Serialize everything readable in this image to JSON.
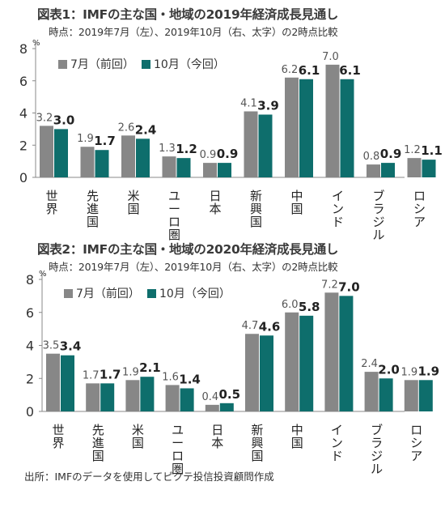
{
  "colors": {
    "prev": "#878787",
    "curr": "#0e6e6c",
    "axis": "#888888"
  },
  "source": "出所：IMFのデータを使用してピクテ投信投資顧問作成",
  "chart_data": [
    {
      "type": "bar",
      "title": "図表1：IMFの主な国・地域の2019年経済成長見通し",
      "subtitle": "時点：2019年7月（左）、2019年10月（右、太字）の2時点比較",
      "unit": "%",
      "categories": [
        "世界",
        "先進国",
        "米国",
        "ユーロ圏",
        "日本",
        "新興国",
        "中国",
        "インド",
        "ブラジル",
        "ロシア"
      ],
      "series": [
        {
          "name": "7月（前回）",
          "values": [
            3.2,
            1.9,
            2.6,
            1.3,
            0.9,
            4.1,
            6.2,
            7.0,
            0.8,
            1.2
          ]
        },
        {
          "name": "10月（今回）",
          "values": [
            3.0,
            1.7,
            2.4,
            1.2,
            0.9,
            3.9,
            6.1,
            6.1,
            0.9,
            1.1
          ]
        }
      ],
      "labels": [
        [
          "3.2",
          "1.9",
          "2.6",
          "1.3",
          "0.9",
          "4.1",
          "6.2",
          "7.0",
          "0.8",
          "1.2"
        ],
        [
          "3.0",
          "1.7",
          "2.4",
          "1.2",
          "0.9",
          "3.9",
          "6.1",
          "6.1",
          "0.9",
          "1.1"
        ]
      ],
      "yticks": [
        "0",
        "2",
        "4",
        "6",
        "8"
      ],
      "ylim": [
        0,
        8
      ],
      "legend": "top-left"
    },
    {
      "type": "bar",
      "title": "図表2：IMFの主な国・地域の2020年経済成長見通し",
      "subtitle": "時点：2019年7月（左）、2019年10月（右、太字）の2時点比較",
      "unit": "%",
      "categories": [
        "世界",
        "先進国",
        "米国",
        "ユーロ圏",
        "日本",
        "新興国",
        "中国",
        "インド",
        "ブラジル",
        "ロシア"
      ],
      "series": [
        {
          "name": "7月（前回）",
          "values": [
            3.5,
            1.7,
            1.9,
            1.6,
            0.4,
            4.7,
            6.0,
            7.2,
            2.4,
            1.9
          ]
        },
        {
          "name": "10月（今回）",
          "values": [
            3.4,
            1.7,
            2.1,
            1.4,
            0.5,
            4.6,
            5.8,
            7.0,
            2.0,
            1.9
          ]
        }
      ],
      "labels": [
        [
          "3.5",
          "1.7",
          "1.9",
          "1.6",
          "0.4",
          "4.7",
          "6.0",
          "7.2",
          "2.4",
          "1.9"
        ],
        [
          "3.4",
          "1.7",
          "2.1",
          "1.4",
          "0.5",
          "4.6",
          "5.8",
          "7.0",
          "2.0",
          "1.9"
        ]
      ],
      "yticks": [
        "0",
        "2",
        "4",
        "6",
        "8"
      ],
      "ylim": [
        0,
        8
      ],
      "legend": "top-left"
    }
  ]
}
